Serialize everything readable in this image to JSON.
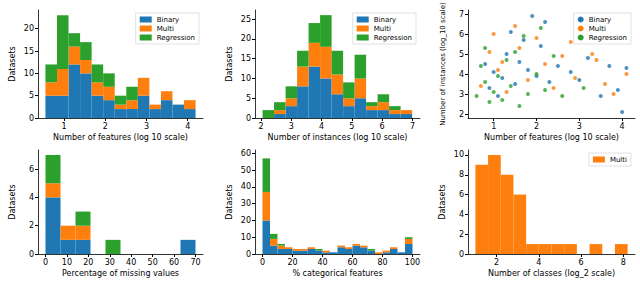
{
  "chart_data": [
    {
      "type": "histogram",
      "x_label": "Number of features (log 10 scale)",
      "y_label": "Datasets",
      "stacked": true,
      "legend": "upper right",
      "bins": [
        0.55,
        0.83,
        1.11,
        1.39,
        1.67,
        1.95,
        2.23,
        2.51,
        2.79,
        3.07,
        3.35,
        3.63,
        3.91,
        4.19
      ],
      "series": [
        {
          "name": "Binary",
          "color": "#1f77b4",
          "values": [
            5,
            5,
            12,
            10,
            5,
            4,
            2,
            2,
            5,
            2,
            4,
            3,
            2
          ]
        },
        {
          "name": "Multi",
          "color": "#ff7f0e",
          "values": [
            3,
            6,
            4,
            3,
            3,
            3,
            1,
            2,
            4,
            1,
            2,
            0,
            2
          ]
        },
        {
          "name": "Regression",
          "color": "#2ca02c",
          "values": [
            4,
            12,
            3,
            4,
            4,
            3,
            2,
            3,
            0,
            0,
            0,
            0,
            0
          ]
        }
      ],
      "xlim": [
        0.37,
        4.37
      ],
      "xticks": [
        1,
        2,
        3,
        4
      ],
      "ylim": [
        0,
        24.2
      ],
      "yticks": [
        0,
        5,
        10,
        15,
        20
      ],
      "grid": false
    },
    {
      "type": "histogram",
      "x_label": "Number of instances (log 10 scale)",
      "y_label": "Datasets",
      "stacked": true,
      "legend": "upper right",
      "bins": [
        2.05,
        2.43,
        2.81,
        3.19,
        3.57,
        3.95,
        4.33,
        4.71,
        5.09,
        5.47,
        5.85,
        6.23,
        6.61,
        6.99
      ],
      "series": [
        {
          "name": "Binary",
          "color": "#1f77b4",
          "values": [
            0,
            1,
            3,
            8,
            13,
            10,
            6,
            3,
            5,
            2,
            2,
            1,
            1
          ]
        },
        {
          "name": "Multi",
          "color": "#ff7f0e",
          "values": [
            0,
            1,
            2,
            5,
            6,
            8,
            5,
            2,
            5,
            1,
            2,
            1,
            1
          ]
        },
        {
          "name": "Regression",
          "color": "#2ca02c",
          "values": [
            2,
            2,
            3,
            4,
            5,
            8,
            6,
            4,
            6,
            1,
            2,
            1,
            0
          ]
        }
      ],
      "xlim": [
        1.8,
        7.25
      ],
      "xticks": [
        2,
        3,
        4,
        5,
        6,
        7
      ],
      "ylim": [
        0,
        27.3
      ],
      "yticks": [
        0,
        5,
        10,
        15,
        20,
        25
      ],
      "grid": false
    },
    {
      "type": "scatter",
      "x_label": "Number of features (log 10 scale)",
      "y_label": "Number of instances (log_10 scale)",
      "legend": "upper right",
      "marker": "circle",
      "series": [
        {
          "name": "Binary",
          "color": "#1f77b4",
          "x": [
            0.9,
            1.0,
            1.1,
            1.2,
            1.3,
            1.5,
            1.6,
            1.8,
            2.0,
            2.1,
            2.3,
            2.5,
            2.8,
            3.0,
            3.2,
            3.5,
            3.7,
            3.9,
            4.0,
            4.1,
            1.9,
            2.2,
            1.4,
            0.8,
            1.7
          ],
          "y": [
            3.3,
            4.1,
            2.9,
            3.8,
            5.0,
            3.5,
            4.6,
            4.2,
            3.9,
            5.4,
            3.6,
            4.4,
            4.1,
            3.7,
            4.8,
            2.9,
            4.4,
            3.2,
            2.1,
            4.3,
            6.9,
            6.6,
            6.1,
            4.5,
            5.7
          ]
        },
        {
          "name": "Multi",
          "color": "#ff7f0e",
          "x": [
            0.7,
            0.9,
            1.0,
            1.2,
            1.3,
            1.6,
            1.8,
            2.0,
            2.2,
            2.4,
            2.6,
            2.9,
            3.3,
            3.4,
            3.6,
            3.8,
            4.1,
            2.8,
            1.1,
            1.5
          ],
          "y": [
            3.4,
            5.1,
            6.0,
            4.6,
            3.1,
            5.3,
            3.7,
            5.8,
            4.5,
            3.3,
            4.9,
            3.8,
            5.0,
            4.7,
            3.5,
            3.0,
            4.0,
            5.6,
            4.2,
            6.4
          ]
        },
        {
          "name": "Regression",
          "color": "#2ca02c",
          "x": [
            0.6,
            0.7,
            0.8,
            0.9,
            1.0,
            1.1,
            1.2,
            1.3,
            1.4,
            1.5,
            1.6,
            1.8,
            2.0,
            2.2,
            2.4,
            2.6,
            3.1,
            1.7,
            2.1,
            0.8
          ],
          "y": [
            2.9,
            4.4,
            3.6,
            2.6,
            3.1,
            3.9,
            2.7,
            4.7,
            3.4,
            5.1,
            2.4,
            3.0,
            4.0,
            3.2,
            4.9,
            2.9,
            3.3,
            5.9,
            6.3,
            5.3
          ]
        }
      ],
      "xlim": [
        0.4,
        4.3
      ],
      "xticks": [
        1,
        2,
        3,
        4
      ],
      "ylim": [
        1.8,
        7.2
      ],
      "yticks": [
        2,
        3,
        4,
        5,
        6,
        7
      ],
      "grid": false
    },
    {
      "type": "histogram",
      "x_label": "Percentage of missing values",
      "y_label": "Datasets",
      "stacked": true,
      "bins": [
        0,
        7,
        14,
        21,
        28,
        35,
        42,
        49,
        56,
        63,
        70
      ],
      "series": [
        {
          "name": "Binary",
          "color": "#1f77b4",
          "values": [
            4,
            1,
            1,
            0,
            0,
            0,
            0,
            0,
            0,
            1
          ]
        },
        {
          "name": "Multi",
          "color": "#ff7f0e",
          "values": [
            1,
            1,
            1,
            0,
            0,
            0,
            0,
            0,
            0,
            0
          ]
        },
        {
          "name": "Regression",
          "color": "#2ca02c",
          "values": [
            2,
            0,
            1,
            0,
            1,
            0,
            0,
            0,
            0,
            0
          ]
        }
      ],
      "xlim": [
        -3.5,
        73.5
      ],
      "xticks": [
        0,
        10,
        20,
        30,
        40,
        50,
        60,
        70
      ],
      "ylim": [
        0,
        7.35
      ],
      "yticks": [
        0,
        2,
        4,
        6
      ],
      "grid": false
    },
    {
      "type": "histogram",
      "x_label": "% categorical features",
      "y_label": "Datasets",
      "stacked": true,
      "bins": [
        0,
        5,
        10,
        15,
        20,
        25,
        30,
        35,
        40,
        45,
        50,
        55,
        60,
        65,
        70,
        75,
        80,
        85,
        90,
        95,
        100
      ],
      "series": [
        {
          "name": "Binary",
          "color": "#1f77b4",
          "values": [
            20,
            5,
            3,
            3,
            2,
            2,
            3,
            2,
            1,
            1,
            4,
            3,
            5,
            4,
            2,
            0,
            1,
            3,
            1,
            6
          ]
        },
        {
          "name": "Multi",
          "color": "#ff7f0e",
          "values": [
            17,
            4,
            2,
            1,
            1,
            1,
            1,
            0,
            1,
            0,
            1,
            1,
            1,
            1,
            0,
            1,
            1,
            1,
            0,
            3
          ]
        },
        {
          "name": "Regression",
          "color": "#2ca02c",
          "values": [
            20,
            3,
            1,
            0,
            0,
            0,
            0,
            1,
            0,
            0,
            0,
            0,
            0,
            0,
            1,
            0,
            0,
            0,
            0,
            1
          ]
        }
      ],
      "xlim": [
        -5,
        105
      ],
      "xticks": [
        0,
        20,
        40,
        60,
        80,
        100
      ],
      "ylim": [
        0,
        62
      ],
      "yticks": [
        0,
        10,
        20,
        30,
        40,
        50,
        60
      ],
      "grid": false
    },
    {
      "type": "histogram",
      "x_label": "Number of classes (log_2 scale)",
      "y_label": "Datasets",
      "legend": "upper right",
      "bins": [
        1.0,
        1.6,
        2.2,
        2.8,
        3.4,
        4.0,
        4.6,
        5.2,
        5.8,
        6.4,
        7.0,
        7.6,
        8.2
      ],
      "series": [
        {
          "name": "Multi",
          "color": "#ff7f0e",
          "values": [
            9,
            10,
            8,
            6,
            1,
            1,
            1,
            1,
            0,
            1,
            0,
            1
          ]
        }
      ],
      "xlim": [
        0.65,
        8.55
      ],
      "xticks": [
        2,
        4,
        6,
        8
      ],
      "ylim": [
        0,
        10.5
      ],
      "yticks": [
        0,
        2,
        4,
        6,
        8,
        10
      ],
      "grid": false
    }
  ]
}
